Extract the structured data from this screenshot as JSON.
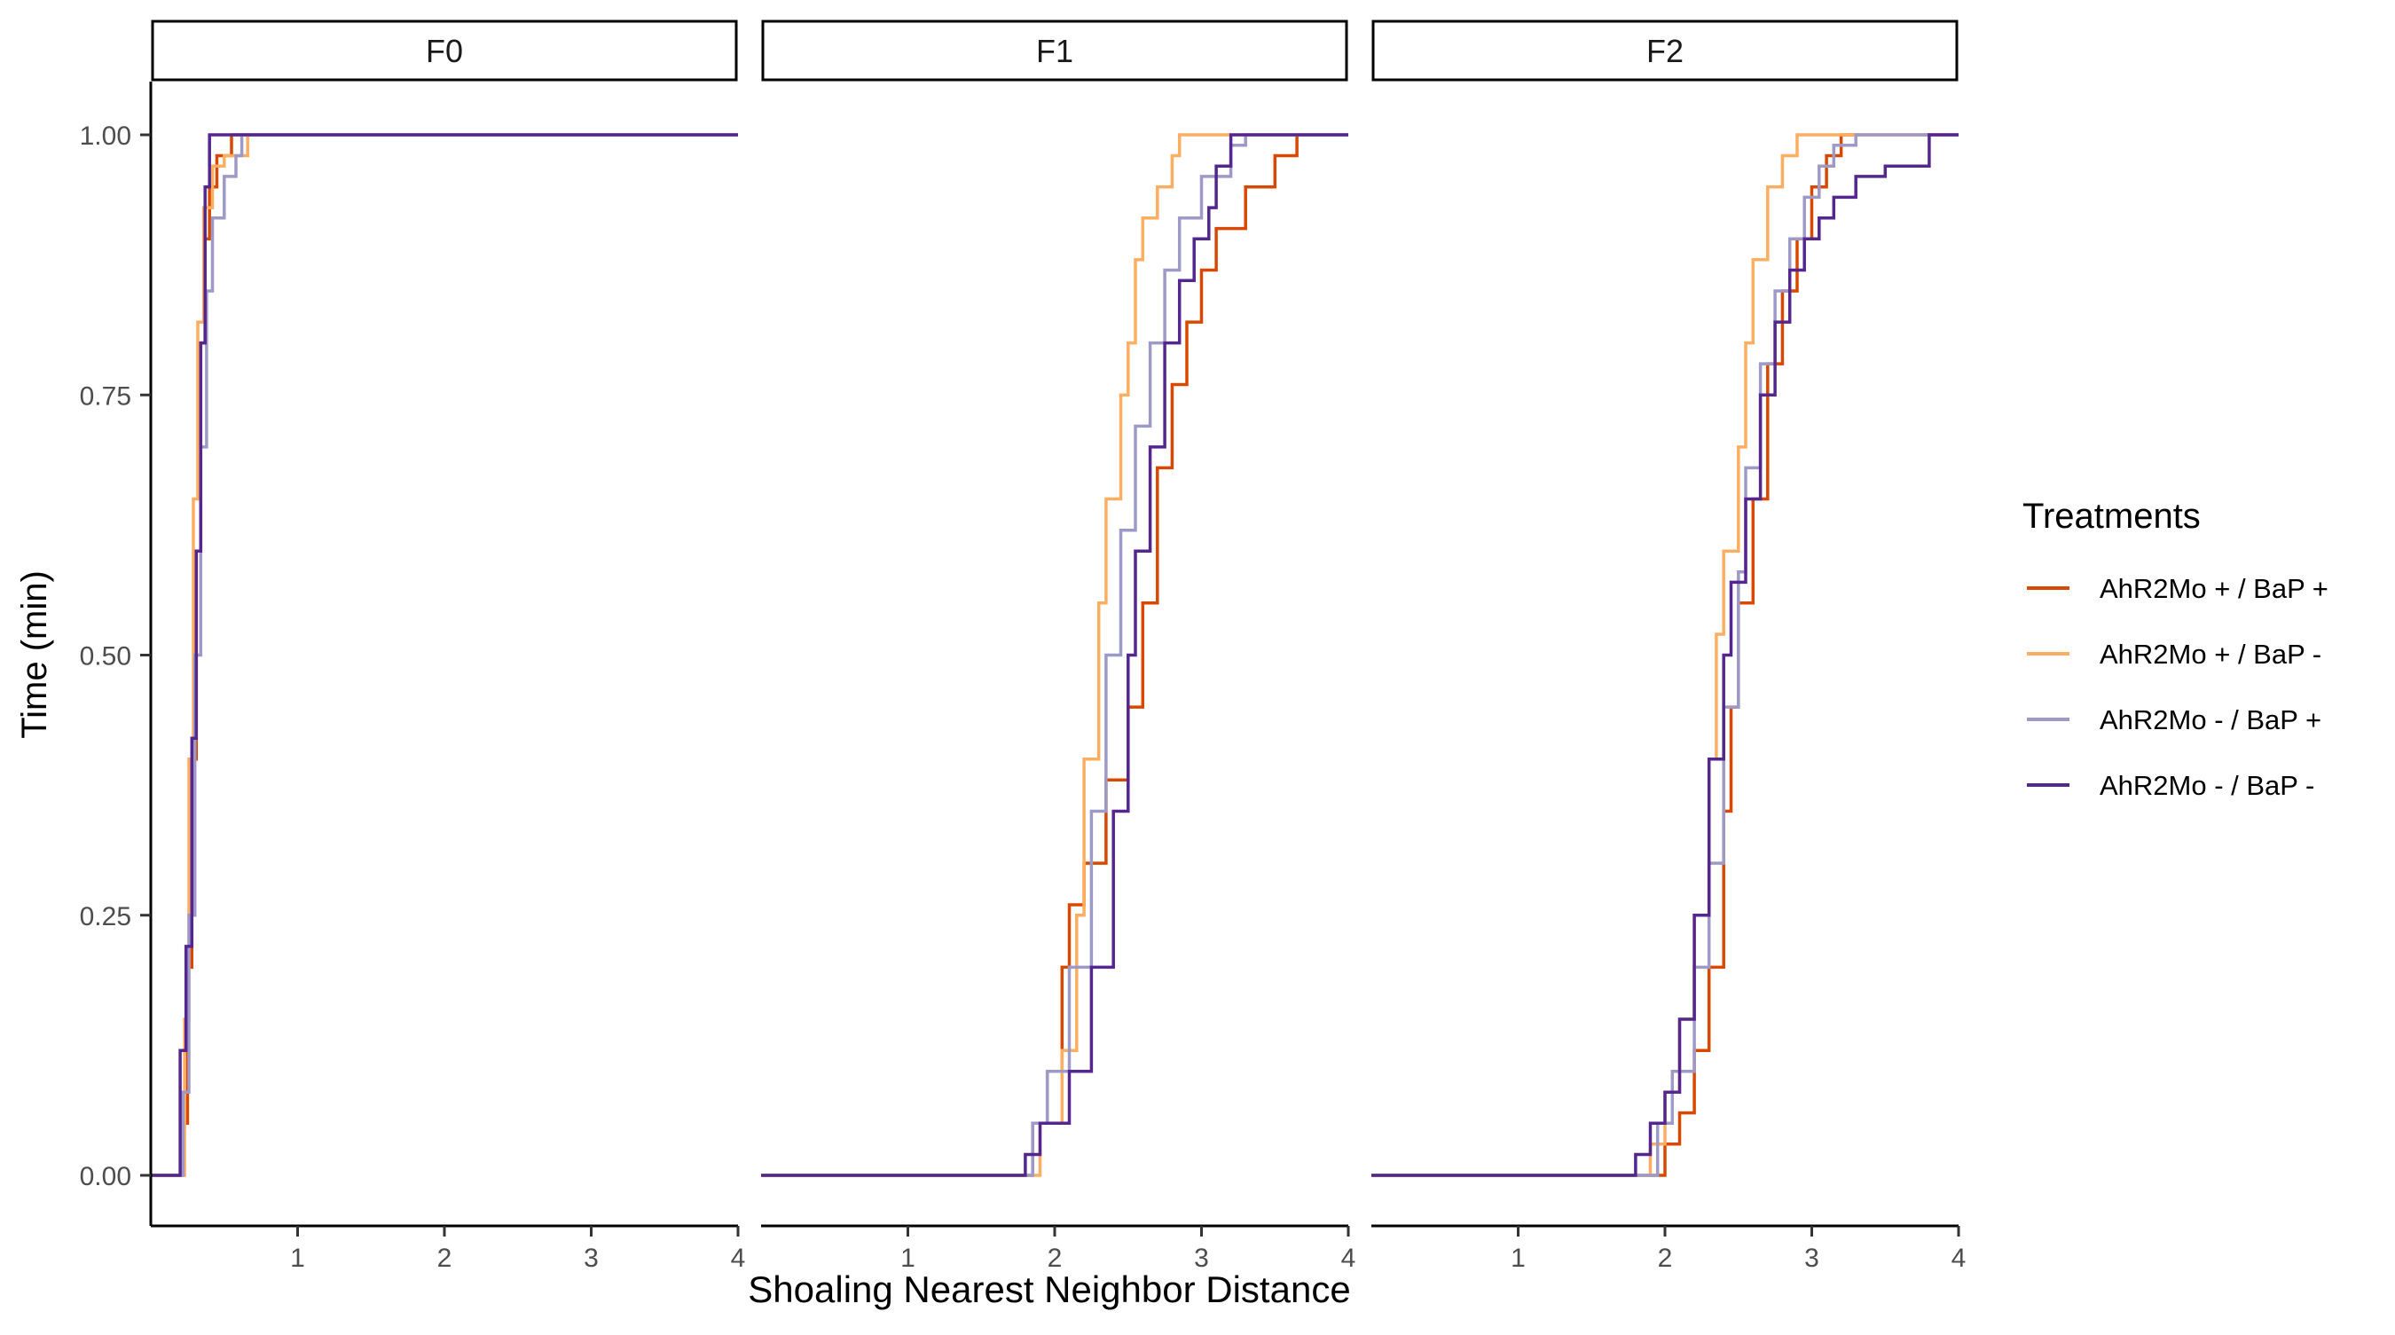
{
  "chart_data": {
    "type": "line",
    "subtype": "step",
    "xlabel": "Shoaling Nearest Neighbor Distance",
    "ylabel": "Time (min)",
    "xlim": [
      0,
      4
    ],
    "ylim": [
      0,
      1
    ],
    "x_ticks": [
      "1",
      "2",
      "3",
      "4"
    ],
    "y_ticks": [
      "0.00",
      "0.25",
      "0.50",
      "0.75",
      "1.00"
    ],
    "grid": false,
    "legend": {
      "title": "Treatments",
      "position": "right",
      "entries": [
        {
          "name": "AhR2Mo + / BaP +",
          "color": "#d94801"
        },
        {
          "name": "AhR2Mo + / BaP -",
          "color": "#fdae61"
        },
        {
          "name": "AhR2Mo - / BaP +",
          "color": "#9e9ac8"
        },
        {
          "name": "AhR2Mo - / BaP -",
          "color": "#54278f"
        }
      ]
    },
    "facets": [
      {
        "label": "F0",
        "series": [
          {
            "name": "AhR2Mo + / BaP +",
            "points": [
              [
                0,
                0
              ],
              [
                0.2,
                0
              ],
              [
                0.22,
                0.05
              ],
              [
                0.25,
                0.2
              ],
              [
                0.28,
                0.4
              ],
              [
                0.31,
                0.6
              ],
              [
                0.34,
                0.8
              ],
              [
                0.37,
                0.9
              ],
              [
                0.4,
                0.95
              ],
              [
                0.45,
                0.98
              ],
              [
                0.55,
                1
              ],
              [
                4,
                1
              ]
            ]
          },
          {
            "name": "AhR2Mo + / BaP -",
            "points": [
              [
                0,
                0
              ],
              [
                0.2,
                0
              ],
              [
                0.23,
                0.15
              ],
              [
                0.26,
                0.4
              ],
              [
                0.29,
                0.65
              ],
              [
                0.32,
                0.82
              ],
              [
                0.36,
                0.93
              ],
              [
                0.42,
                0.97
              ],
              [
                0.5,
                0.98
              ],
              [
                0.66,
                1
              ],
              [
                4,
                1
              ]
            ]
          },
          {
            "name": "AhR2Mo - / BaP +",
            "points": [
              [
                0,
                0
              ],
              [
                0.2,
                0
              ],
              [
                0.22,
                0.08
              ],
              [
                0.26,
                0.25
              ],
              [
                0.3,
                0.5
              ],
              [
                0.34,
                0.7
              ],
              [
                0.38,
                0.85
              ],
              [
                0.42,
                0.92
              ],
              [
                0.5,
                0.96
              ],
              [
                0.58,
                0.98
              ],
              [
                0.62,
                1
              ],
              [
                4,
                1
              ]
            ]
          },
          {
            "name": "AhR2Mo - / BaP -",
            "points": [
              [
                0,
                0
              ],
              [
                0.18,
                0
              ],
              [
                0.2,
                0.12
              ],
              [
                0.24,
                0.22
              ],
              [
                0.28,
                0.42
              ],
              [
                0.31,
                0.6
              ],
              [
                0.34,
                0.8
              ],
              [
                0.37,
                0.95
              ],
              [
                0.4,
                1
              ],
              [
                4,
                1
              ]
            ]
          }
        ]
      },
      {
        "label": "F1",
        "series": [
          {
            "name": "AhR2Mo + / BaP +",
            "points": [
              [
                0,
                0
              ],
              [
                1.75,
                0
              ],
              [
                1.85,
                0.05
              ],
              [
                1.95,
                0.1
              ],
              [
                2.05,
                0.2
              ],
              [
                2.1,
                0.26
              ],
              [
                2.2,
                0.3
              ],
              [
                2.35,
                0.38
              ],
              [
                2.5,
                0.45
              ],
              [
                2.6,
                0.55
              ],
              [
                2.7,
                0.68
              ],
              [
                2.8,
                0.76
              ],
              [
                2.9,
                0.82
              ],
              [
                3.0,
                0.87
              ],
              [
                3.1,
                0.91
              ],
              [
                3.3,
                0.95
              ],
              [
                3.5,
                0.98
              ],
              [
                3.65,
                1
              ],
              [
                4,
                1
              ]
            ]
          },
          {
            "name": "AhR2Mo + / BaP -",
            "points": [
              [
                0,
                0
              ],
              [
                1.85,
                0
              ],
              [
                1.9,
                0.05
              ],
              [
                2.05,
                0.12
              ],
              [
                2.15,
                0.25
              ],
              [
                2.2,
                0.4
              ],
              [
                2.3,
                0.55
              ],
              [
                2.35,
                0.65
              ],
              [
                2.45,
                0.75
              ],
              [
                2.5,
                0.8
              ],
              [
                2.55,
                0.88
              ],
              [
                2.6,
                0.92
              ],
              [
                2.7,
                0.95
              ],
              [
                2.8,
                0.98
              ],
              [
                2.85,
                1
              ],
              [
                4,
                1
              ]
            ]
          },
          {
            "name": "AhR2Mo - / BaP +",
            "points": [
              [
                0,
                0
              ],
              [
                1.75,
                0
              ],
              [
                1.85,
                0.05
              ],
              [
                1.95,
                0.1
              ],
              [
                2.1,
                0.2
              ],
              [
                2.25,
                0.35
              ],
              [
                2.35,
                0.5
              ],
              [
                2.45,
                0.62
              ],
              [
                2.55,
                0.72
              ],
              [
                2.65,
                0.8
              ],
              [
                2.75,
                0.87
              ],
              [
                2.85,
                0.92
              ],
              [
                3.0,
                0.96
              ],
              [
                3.2,
                0.99
              ],
              [
                3.3,
                1
              ],
              [
                4,
                1
              ]
            ]
          },
          {
            "name": "AhR2Mo - / BaP -",
            "points": [
              [
                0,
                0
              ],
              [
                1.7,
                0
              ],
              [
                1.8,
                0.02
              ],
              [
                1.9,
                0.05
              ],
              [
                2.1,
                0.1
              ],
              [
                2.25,
                0.2
              ],
              [
                2.4,
                0.35
              ],
              [
                2.5,
                0.5
              ],
              [
                2.55,
                0.6
              ],
              [
                2.65,
                0.7
              ],
              [
                2.75,
                0.8
              ],
              [
                2.85,
                0.86
              ],
              [
                2.95,
                0.9
              ],
              [
                3.05,
                0.93
              ],
              [
                3.1,
                0.97
              ],
              [
                3.2,
                1
              ],
              [
                4,
                1
              ]
            ]
          }
        ]
      },
      {
        "label": "F2",
        "series": [
          {
            "name": "AhR2Mo + / BaP +",
            "points": [
              [
                0,
                0
              ],
              [
                1.85,
                0
              ],
              [
                2.0,
                0.03
              ],
              [
                2.1,
                0.06
              ],
              [
                2.2,
                0.12
              ],
              [
                2.3,
                0.2
              ],
              [
                2.4,
                0.35
              ],
              [
                2.45,
                0.45
              ],
              [
                2.5,
                0.55
              ],
              [
                2.6,
                0.65
              ],
              [
                2.7,
                0.78
              ],
              [
                2.8,
                0.85
              ],
              [
                2.9,
                0.9
              ],
              [
                3.0,
                0.95
              ],
              [
                3.1,
                0.98
              ],
              [
                3.2,
                1
              ],
              [
                4,
                1
              ]
            ]
          },
          {
            "name": "AhR2Mo + / BaP -",
            "points": [
              [
                0,
                0
              ],
              [
                1.85,
                0
              ],
              [
                1.9,
                0.03
              ],
              [
                2.0,
                0.08
              ],
              [
                2.1,
                0.15
              ],
              [
                2.2,
                0.25
              ],
              [
                2.3,
                0.4
              ],
              [
                2.35,
                0.52
              ],
              [
                2.4,
                0.6
              ],
              [
                2.5,
                0.7
              ],
              [
                2.55,
                0.8
              ],
              [
                2.6,
                0.88
              ],
              [
                2.7,
                0.95
              ],
              [
                2.8,
                0.98
              ],
              [
                2.9,
                1
              ],
              [
                4,
                1
              ]
            ]
          },
          {
            "name": "AhR2Mo - / BaP +",
            "points": [
              [
                0,
                0
              ],
              [
                1.8,
                0
              ],
              [
                1.95,
                0.05
              ],
              [
                2.05,
                0.1
              ],
              [
                2.2,
                0.2
              ],
              [
                2.3,
                0.3
              ],
              [
                2.4,
                0.45
              ],
              [
                2.5,
                0.58
              ],
              [
                2.55,
                0.68
              ],
              [
                2.65,
                0.78
              ],
              [
                2.75,
                0.85
              ],
              [
                2.85,
                0.9
              ],
              [
                2.95,
                0.94
              ],
              [
                3.05,
                0.97
              ],
              [
                3.15,
                0.99
              ],
              [
                3.3,
                1
              ],
              [
                4,
                1
              ]
            ]
          },
          {
            "name": "AhR2Mo - / BaP -",
            "points": [
              [
                0,
                0
              ],
              [
                1.7,
                0
              ],
              [
                1.8,
                0.02
              ],
              [
                1.9,
                0.05
              ],
              [
                2.0,
                0.08
              ],
              [
                2.1,
                0.15
              ],
              [
                2.2,
                0.25
              ],
              [
                2.3,
                0.4
              ],
              [
                2.4,
                0.5
              ],
              [
                2.45,
                0.57
              ],
              [
                2.55,
                0.65
              ],
              [
                2.65,
                0.75
              ],
              [
                2.75,
                0.82
              ],
              [
                2.85,
                0.87
              ],
              [
                2.95,
                0.9
              ],
              [
                3.05,
                0.92
              ],
              [
                3.15,
                0.94
              ],
              [
                3.3,
                0.96
              ],
              [
                3.5,
                0.97
              ],
              [
                3.8,
                1
              ],
              [
                4,
                1
              ]
            ]
          }
        ]
      }
    ]
  }
}
